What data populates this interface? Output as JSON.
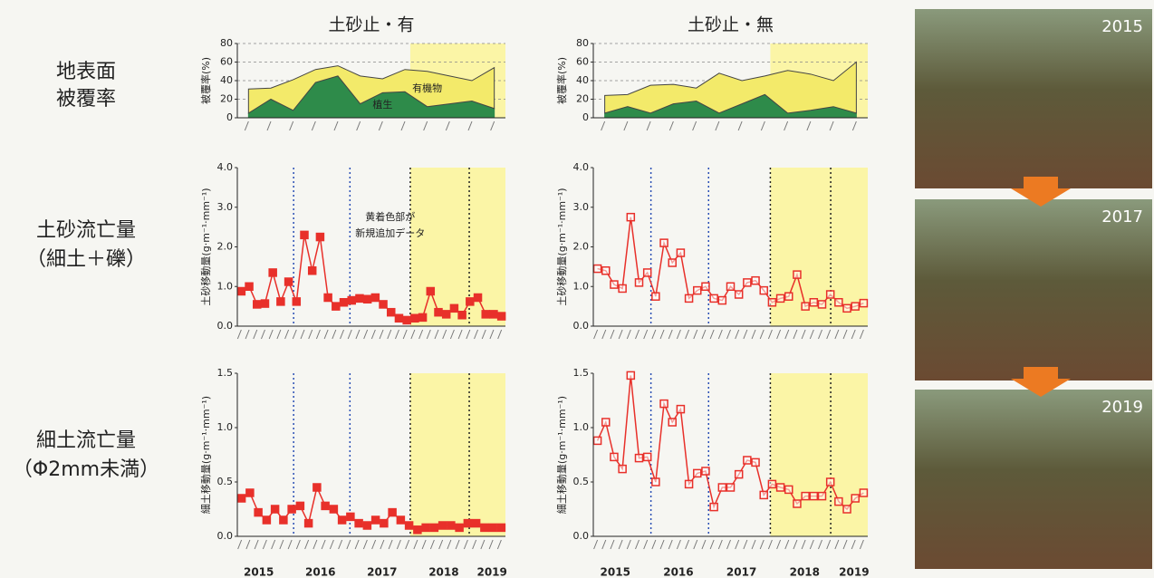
{
  "row_labels": [
    [
      "地表面",
      "被覆率"
    ],
    [
      "土砂流亡量",
      "（細土＋礫）"
    ],
    [
      "細土流亡量",
      "（Φ2mm未満）"
    ]
  ],
  "photo_years": [
    "2015",
    "2017",
    "2019"
  ],
  "chart_data": [
    {
      "type": "area",
      "title": "土砂止・有",
      "ylabel": "被覆率(%)",
      "ylim": [
        0,
        80
      ],
      "yticks": [
        0,
        20,
        40,
        60,
        80
      ],
      "grid": true,
      "categories": [
        null,
        null,
        null,
        null,
        null,
        null,
        null,
        null,
        null,
        null,
        null,
        null
      ],
      "series": [
        {
          "name": "植生",
          "color": "#2e8b4a",
          "values": [
            5,
            20,
            8,
            38,
            45,
            15,
            27,
            28,
            12,
            15,
            18,
            10
          ]
        },
        {
          "name": "有機物",
          "color": "#f3ea6a",
          "values": [
            26,
            12,
            33,
            14,
            11,
            30,
            15,
            24,
            38,
            30,
            22,
            44
          ]
        }
      ]
    },
    {
      "type": "line",
      "ylabel": "土砂移動量(g·m⁻¹·mm⁻¹)",
      "ylim": [
        0,
        4
      ],
      "yticks": [
        {
          "value": 0,
          "label": "0.0"
        },
        {
          "value": 1,
          "label": "1.0"
        },
        {
          "value": 2,
          "label": "2.0"
        },
        {
          "value": 3,
          "label": "3.0"
        },
        {
          "value": 4,
          "label": "4.0"
        }
      ],
      "annotation": [
        "黄着色部が",
        "新規追加データ"
      ],
      "marker": "filled",
      "categories": [
        null,
        null,
        null,
        null,
        null,
        null,
        null,
        null,
        null,
        null,
        null,
        null,
        null,
        null,
        null,
        null,
        null,
        null,
        null,
        null,
        null,
        null,
        null,
        null,
        null,
        null,
        null,
        null,
        null,
        null,
        null,
        null,
        null,
        null
      ],
      "series": [
        {
          "color": "#e8302a",
          "values": [
            0.88,
            1.0,
            0.55,
            0.57,
            1.35,
            0.62,
            1.12,
            0.62,
            2.3,
            1.4,
            2.25,
            0.72,
            0.5,
            0.6,
            0.65,
            0.7,
            0.68,
            0.72,
            0.55,
            0.35,
            0.2,
            0.15,
            0.2,
            0.22,
            0.88,
            0.35,
            0.3,
            0.45,
            0.28,
            0.62,
            0.72,
            0.3,
            0.3,
            0.25
          ]
        }
      ]
    },
    {
      "type": "line",
      "ylabel": "細土移動量(g·m⁻¹·mm⁻¹)",
      "ylim": [
        0,
        1.5
      ],
      "yticks": [
        {
          "value": 0,
          "label": "0.0"
        },
        {
          "value": 0.5,
          "label": "0.5"
        },
        {
          "value": 1,
          "label": "1.0"
        },
        {
          "value": 1.5,
          "label": "1.5"
        }
      ],
      "marker": "filled",
      "year_labels": [
        "2015",
        "2016",
        "2017",
        "2018",
        "2019"
      ],
      "categories": [
        null,
        null,
        null,
        null,
        null,
        null,
        null,
        null,
        null,
        null,
        null,
        null,
        null,
        null,
        null,
        null,
        null,
        null,
        null,
        null,
        null,
        null,
        null,
        null,
        null,
        null,
        null,
        null,
        null,
        null,
        null,
        null
      ],
      "series": [
        {
          "color": "#e8302a",
          "values": [
            0.35,
            0.4,
            0.22,
            0.15,
            0.25,
            0.15,
            0.25,
            0.28,
            0.12,
            0.45,
            0.28,
            0.25,
            0.15,
            0.18,
            0.12,
            0.1,
            0.15,
            0.12,
            0.22,
            0.15,
            0.1,
            0.06,
            0.08,
            0.08,
            0.1,
            0.1,
            0.08,
            0.12,
            0.12,
            0.08,
            0.08,
            0.08
          ]
        }
      ]
    },
    {
      "type": "area",
      "title": "土砂止・無",
      "ylabel": "被覆率(%)",
      "ylim": [
        0,
        80
      ],
      "yticks": [
        0,
        20,
        40,
        60,
        80
      ],
      "grid": true,
      "categories": [
        null,
        null,
        null,
        null,
        null,
        null,
        null,
        null,
        null,
        null,
        null,
        null
      ],
      "series": [
        {
          "color": "#2e8b4a",
          "values": [
            5,
            12,
            5,
            15,
            18,
            5,
            15,
            25,
            5,
            8,
            12,
            5
          ]
        },
        {
          "color": "#f3ea6a",
          "values": [
            19,
            13,
            30,
            21,
            14,
            43,
            25,
            20,
            46,
            39,
            28,
            55
          ]
        }
      ]
    },
    {
      "type": "line",
      "ylabel": "土砂移動量(g·m⁻¹·mm⁻¹)",
      "ylim": [
        0,
        4
      ],
      "yticks": [
        {
          "value": 0,
          "label": "0.0"
        },
        {
          "value": 1,
          "label": "1.0"
        },
        {
          "value": 2,
          "label": "2.0"
        },
        {
          "value": 3,
          "label": "3.0"
        },
        {
          "value": 4,
          "label": "4.0"
        }
      ],
      "marker": "open",
      "categories": [
        null,
        null,
        null,
        null,
        null,
        null,
        null,
        null,
        null,
        null,
        null,
        null,
        null,
        null,
        null,
        null,
        null,
        null,
        null,
        null,
        null,
        null,
        null,
        null,
        null,
        null,
        null,
        null,
        null,
        null,
        null,
        null,
        null
      ],
      "series": [
        {
          "color": "#e8302a",
          "values": [
            1.45,
            1.4,
            1.05,
            0.95,
            2.75,
            1.1,
            1.35,
            0.75,
            2.1,
            1.6,
            1.85,
            0.7,
            0.9,
            1.0,
            0.7,
            0.65,
            1.0,
            0.8,
            1.1,
            1.15,
            0.9,
            0.6,
            0.7,
            0.75,
            1.3,
            0.5,
            0.6,
            0.55,
            0.8,
            0.6,
            0.45,
            0.5,
            0.58
          ]
        }
      ]
    },
    {
      "type": "line",
      "ylabel": "細土移動量(g·m⁻¹·mm⁻¹)",
      "ylim": [
        0,
        1.5
      ],
      "yticks": [
        {
          "value": 0,
          "label": "0.0"
        },
        {
          "value": 0.5,
          "label": "0.5"
        },
        {
          "value": 1,
          "label": "1.0"
        },
        {
          "value": 1.5,
          "label": "1.5"
        }
      ],
      "marker": "open",
      "year_labels": [
        "2015",
        "2016",
        "2017",
        "2018",
        "2019"
      ],
      "categories": [
        null,
        null,
        null,
        null,
        null,
        null,
        null,
        null,
        null,
        null,
        null,
        null,
        null,
        null,
        null,
        null,
        null,
        null,
        null,
        null,
        null,
        null,
        null,
        null,
        null,
        null,
        null,
        null,
        null,
        null,
        null,
        null,
        null
      ],
      "series": [
        {
          "color": "#e8302a",
          "values": [
            0.88,
            1.05,
            0.73,
            0.62,
            1.48,
            0.72,
            0.73,
            0.5,
            1.22,
            1.05,
            1.17,
            0.48,
            0.58,
            0.6,
            0.27,
            0.45,
            0.45,
            0.57,
            0.7,
            0.68,
            0.38,
            0.48,
            0.45,
            0.43,
            0.3,
            0.37,
            0.37,
            0.37,
            0.5,
            0.32,
            0.25,
            0.35,
            0.4
          ]
        }
      ]
    }
  ]
}
